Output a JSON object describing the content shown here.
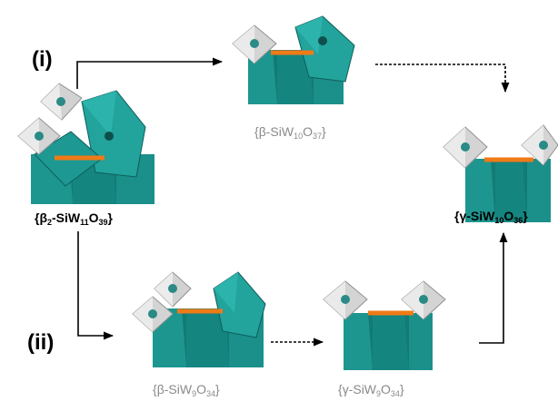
{
  "routes": {
    "i": "(i)",
    "ii": "(ii)"
  },
  "captions": {
    "start": {
      "open": "{",
      "a": "β",
      "b": "2",
      "c": "-SiW",
      "d": "11",
      "e": "O",
      "f": "39",
      "close": "}"
    },
    "beta10": {
      "open": "{",
      "a": "β-SiW",
      "b": "10",
      "c": "O",
      "d": "37",
      "close": "}"
    },
    "gamma10": {
      "open": "{",
      "a": "γ-SiW",
      "b": "10",
      "c": "O",
      "d": "36",
      "close": "}"
    },
    "beta9": {
      "open": "{",
      "a": "β-SiW",
      "b": "9",
      "c": "O",
      "d": "34",
      "close": "}"
    },
    "gamma9": {
      "open": "{",
      "a": "γ-SiW",
      "b": "9",
      "c": "O",
      "d": "34",
      "close": "}"
    }
  },
  "colors": {
    "teal": "#1f9a94",
    "teal_dark": "#136e6a",
    "grey_octahedron": "#c9c9c9",
    "orange_bond": "#f07a16",
    "caption_grey": "#8a8a8a"
  }
}
